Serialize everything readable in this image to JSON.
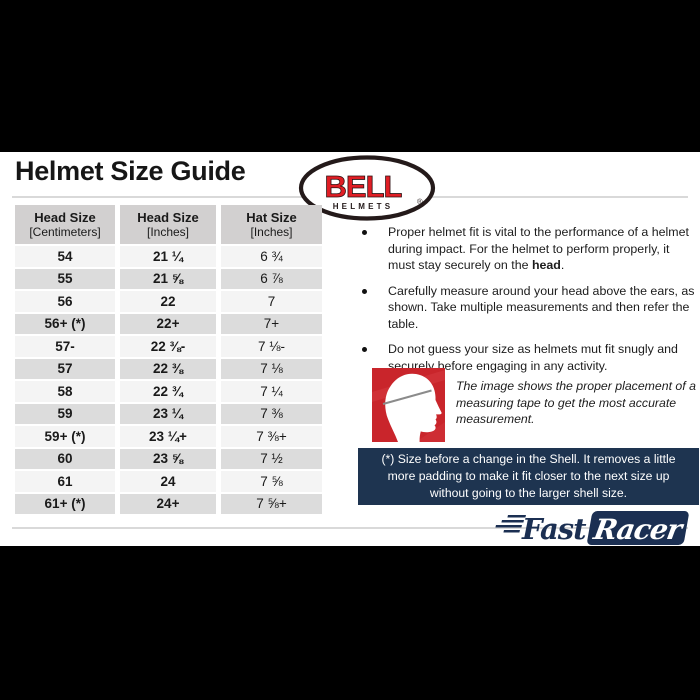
{
  "page": {
    "title": "Helmet Size Guide"
  },
  "bell_logo": {
    "name": "BELL",
    "sub": "HELMETS",
    "reg": "®"
  },
  "size_table": {
    "headers": [
      {
        "line1": "Head Size",
        "line2": "[Centimeters]"
      },
      {
        "line1": "Head Size",
        "line2": "[Inches]"
      },
      {
        "line1": "Hat Size",
        "line2": "[Inches]"
      }
    ],
    "rows": [
      [
        "54",
        "21 ¼",
        "6 ¾"
      ],
      [
        "55",
        "21 ⅝",
        "6 ⅞"
      ],
      [
        "56",
        "22",
        "7"
      ],
      [
        "56+ (*)",
        "22+",
        "7+"
      ],
      [
        "57-",
        "22 ⅜-",
        "7 ⅛-"
      ],
      [
        "57",
        "22 ⅜",
        "7 ⅛"
      ],
      [
        "58",
        "22 ¾",
        "7 ¼"
      ],
      [
        "59",
        "23 ¼",
        "7 ⅜"
      ],
      [
        "59+ (*)",
        "23 ¼+",
        "7 ⅜+"
      ],
      [
        "60",
        "23 ⅝",
        "7 ½"
      ],
      [
        "61",
        "24",
        "7 ⅝"
      ],
      [
        "61+ (*)",
        "24+",
        "7 ⅝+"
      ]
    ]
  },
  "fit_notes": {
    "bullets": [
      {
        "pre": "Proper helmet fit is vital to the performance of a helmet during impact. For the helmet to perform properly, it must stay securely on the ",
        "bold": "head",
        "post": "."
      },
      {
        "pre": "Carefully measure around your head above the ears, as shown. Take multiple measurements and then refer the table.",
        "bold": "",
        "post": ""
      },
      {
        "pre": "Do not guess your size as helmets mut fit snugly and securely before engaging in any activity.",
        "bold": "",
        "post": ""
      }
    ],
    "caption": "The image shows the proper placement of a measuring tape to get the most accurate measurement."
  },
  "note_box": {
    "text": "(*) Size before a change in the Shell. It removes a little more padding to make it fit closer to the next size up without going to the larger shell size."
  },
  "footer_logo": {
    "fast": "Fast",
    "racer": "Racer"
  },
  "colors": {
    "bell_red": "#e01e25",
    "note_navy": "#1e3450",
    "brand_navy": "#1b2f52",
    "image_red": "#c9252b",
    "table_header_gray": "#d2d0d0",
    "row_light": "#f4f4f4",
    "row_dark": "#dcdcdc",
    "rule_gray": "#d9d9d9"
  }
}
